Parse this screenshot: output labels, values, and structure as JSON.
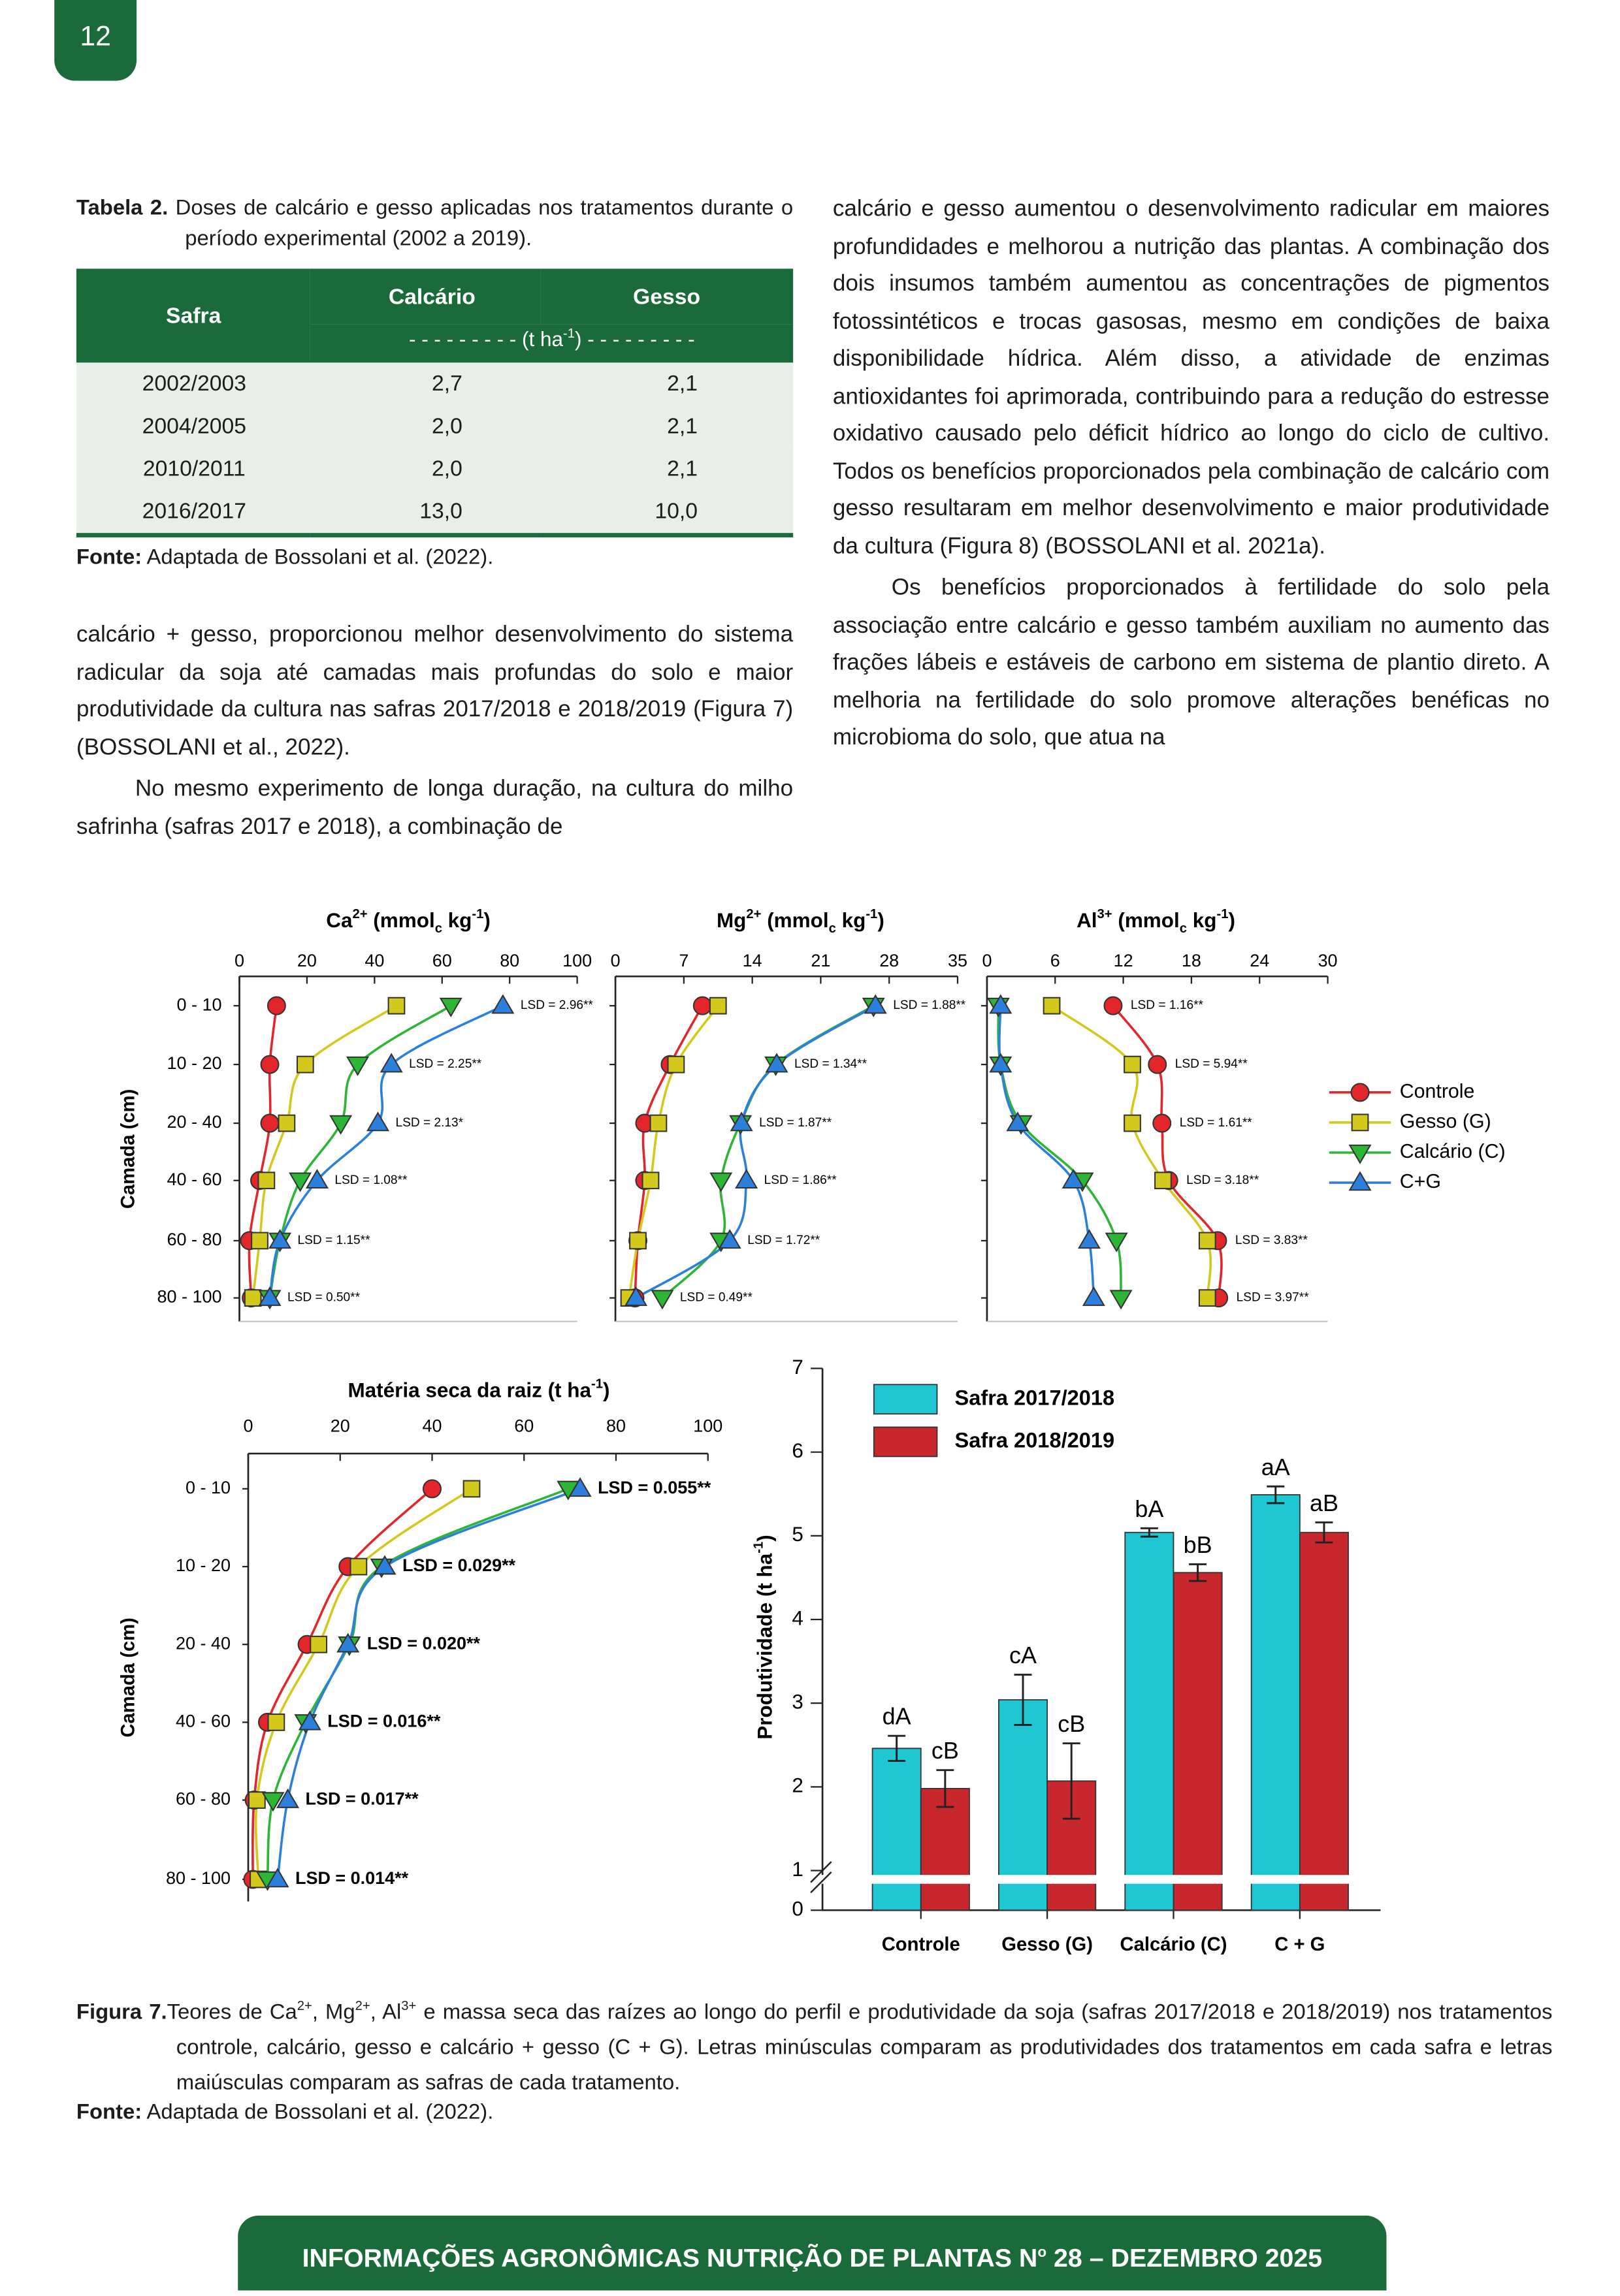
{
  "header": {
    "page_number": "12"
  },
  "table": {
    "caption_label": "Tabela 2.",
    "caption": "Doses de calcário e gesso aplicadas nos tratamentos durante o período experimental (2002 a 2019).",
    "columns": [
      "Safra",
      "Calcário",
      "Gesso"
    ],
    "units": [
      "- - - - - - - - - (t ha",
      "-1",
      ") - - - - - - - - -"
    ],
    "rows": [
      [
        "2002/2003",
        "2,7",
        "2,1"
      ],
      [
        "2004/2005",
        "2,0",
        "2,1"
      ],
      [
        "2010/2011",
        "2,0",
        "2,1"
      ],
      [
        "2016/2017",
        "13,0",
        "10,0"
      ]
    ],
    "source_label": "Fonte:",
    "source": "Adaptada de Bossolani et al. (2022)."
  },
  "body": {
    "left": [
      "calcário + gesso, proporcionou melhor desenvolvimento do sistema radicular da soja até camadas mais profundas do solo e maior produtividade da cultura nas safras 2017/2018 e 2018/2019 (Figura 7) (BOSSOLANI et al., 2022).",
      "No mesmo experimento de longa duração, na cultura do milho safrinha (safras 2017 e 2018), a combinação de"
    ],
    "right": [
      "calcário e gesso aumentou o desenvolvimento radicular em maiores profundidades e melhorou a nutrição das plantas. A combinação dos dois insumos também aumentou as concentrações de pigmentos fotossintéticos e trocas gasosas, mesmo em condições de baixa disponibilidade hídrica. Além disso, a atividade de enzimas antioxidantes foi aprimorada, contribuindo para a redução do estresse oxidativo causado pelo déficit hídrico ao longo do ciclo de cultivo. Todos os benefícios proporcionados pela combinação de calcário com gesso resultaram em melhor desenvolvimento e maior produtividade da cultura (Figura 8) (BOSSOLANI et al. 2021a).",
      "Os benefícios proporcionados à fertilidade do solo pela associação entre calcário e gesso também auxiliam no aumento das frações lábeis e estáveis de carbono em sistema de plantio direto. A melhoria na fertilidade do solo promove alterações benéficas no microbioma do solo, que atua na"
    ]
  },
  "figure": {
    "legend": [
      {
        "name": "Controle",
        "color": "#e3262b",
        "marker": "circle"
      },
      {
        "name": "Gesso (G)",
        "color": "#d2c91c",
        "marker": "square"
      },
      {
        "name": "Calcário (C)",
        "color": "#2db535",
        "marker": "triangle-down"
      },
      {
        "name": "C+G",
        "color": "#2d7fdc",
        "marker": "triangle-up"
      }
    ],
    "panels": [
      {
        "type": "line",
        "title_parts": [
          "Ca",
          "2+",
          " (mmol",
          "c",
          " kg",
          "-1",
          ")"
        ],
        "y_label": "Camada (cm)",
        "categories": [
          "0 - 10",
          "10 - 20",
          "20 - 40",
          "40 - 60",
          "60 - 80",
          "80 - 100"
        ],
        "xlim": [
          0,
          100
        ],
        "xticks": [
          0,
          20,
          40,
          60,
          80,
          100
        ],
        "series": [
          {
            "values": [
              11,
              9,
              9,
              6,
              3,
              3.5
            ]
          },
          {
            "values": [
              46.5,
              19.5,
              14,
              8,
              6,
              4
            ]
          },
          {
            "values": [
              62.6,
              35,
              30,
              18,
              12,
              9
            ]
          },
          {
            "values": [
              78,
              45,
              41,
              23,
              12,
              9
            ]
          }
        ],
        "lsd": [
          "LSD = 2.96**",
          "LSD = 2.25**",
          "LSD = 2.13*",
          "LSD = 1.08**",
          "LSD = 1.15**",
          "LSD = 0.50**"
        ]
      },
      {
        "type": "line",
        "title_parts": [
          "Mg",
          "2+",
          " (mmol",
          "c",
          " kg",
          "-1",
          ")"
        ],
        "xlim": [
          0,
          35
        ],
        "xticks": [
          0,
          7,
          14,
          21,
          28,
          35
        ],
        "series": [
          {
            "values": [
              8.9,
              5.6,
              3,
              3,
              2.3,
              2
            ]
          },
          {
            "values": [
              10.5,
              6.2,
              4.4,
              3.6,
              2.3,
              1.4
            ]
          },
          {
            "values": [
              26.4,
              16.4,
              12.8,
              10.8,
              10.8,
              4.8
            ]
          },
          {
            "values": [
              26.6,
              16.5,
              12.9,
              13.4,
              11.7,
              2.1
            ]
          }
        ],
        "lsd": [
          "LSD = 1.88**",
          "LSD = 1.34**",
          "LSD = 1.87**",
          "LSD = 1.86**",
          "LSD = 1.72**",
          "LSD = 0.49**"
        ]
      },
      {
        "type": "line",
        "title_parts": [
          "Al",
          "3+",
          " (mmol",
          "c",
          " kg",
          "-1",
          ")"
        ],
        "xlim": [
          0,
          30
        ],
        "xticks": [
          0,
          6,
          12,
          18,
          24,
          30
        ],
        "series": [
          {
            "values": [
              11.1,
              15,
              15.4,
              16,
              20.3,
              20.4
            ]
          },
          {
            "values": [
              5.7,
              12.8,
              12.8,
              15.5,
              19.4,
              19.4
            ]
          },
          {
            "values": [
              1,
              1.2,
              3,
              8.4,
              11.4,
              11.8
            ]
          },
          {
            "values": [
              1.2,
              1.2,
              2.7,
              7.6,
              9,
              9.4
            ]
          }
        ],
        "lsd": [
          "LSD = 1.16**",
          "LSD = 5.94**",
          "LSD = 1.61**",
          "LSD = 3.18**",
          "LSD = 3.83**",
          "LSD = 3.97**"
        ]
      },
      {
        "type": "line",
        "title_parts": [
          "Matéria seca da raiz (t ha",
          "-1",
          ")"
        ],
        "y_label": "Camada (cm)",
        "categories": [
          "0 - 10",
          "10 - 20",
          "20 - 40",
          "40 - 60",
          "60 - 80",
          "80 - 100"
        ],
        "xlim": [
          0,
          100
        ],
        "xticks": [
          0,
          20,
          40,
          60,
          80,
          100
        ],
        "series": [
          {
            "values": [
              40,
              21.7,
              12.8,
              4.2,
              1.3,
              1
            ]
          },
          {
            "values": [
              48.6,
              24,
              15.3,
              6.1,
              1.9,
              2.2
            ]
          },
          {
            "values": [
              69.6,
              29,
              22,
              12.5,
              5.4,
              4.2
            ]
          },
          {
            "values": [
              72.2,
              29.7,
              21.7,
              13.4,
              8.6,
              6.4
            ]
          }
        ],
        "lsd": [
          "LSD = 0.055**",
          "LSD = 0.029**",
          "LSD = 0.020**",
          "LSD = 0.016**",
          "LSD = 0.017**",
          "LSD = 0.014**"
        ]
      }
    ],
    "productivity": {
      "type": "bar",
      "y_label_parts": [
        "Produtividade (t ha",
        "-1",
        ")"
      ],
      "categories": [
        "Controle",
        "Gesso (G)",
        "Calcário (C)",
        "C + G"
      ],
      "ylim": [
        0,
        7
      ],
      "yticks": [
        0,
        1,
        2,
        3,
        4,
        5,
        6,
        7
      ],
      "axis_break": true,
      "series": [
        {
          "name": "Safra 2017/2018",
          "color": "#1fc7d3",
          "values": [
            2.46,
            3.04,
            5.04,
            5.49
          ],
          "errors": [
            0.15,
            0.3,
            0.05,
            0.1
          ],
          "letters": [
            "dA",
            "cA",
            "bA",
            "aA"
          ]
        },
        {
          "name": "Safra 2018/2019",
          "color": "#c8272e",
          "values": [
            1.98,
            2.07,
            4.56,
            5.04
          ],
          "errors": [
            0.22,
            0.45,
            0.1,
            0.12
          ],
          "letters": [
            "cB",
            "cB",
            "bB",
            "aB"
          ]
        }
      ]
    },
    "caption_label": "Figura 7.",
    "caption_parts": [
      "Teores de Ca",
      "2+",
      ", Mg",
      "2+",
      ", Al",
      "3+",
      " e massa seca das raízes ao longo do perfil e produtividade da soja (safras 2017/2018 e 2018/2019) nos tratamentos controle, calcário, gesso e calcário + gesso (C + G). Letras minúsculas comparam as produtividades dos tratamentos em cada safra e letras maiúsculas comparam as safras de cada tratamento."
    ],
    "source_label": "Fonte:",
    "source": "Adaptada de Bossolani et al. (2022)."
  },
  "footer": {
    "parts": [
      "INFORMAÇÕES AGRONÔMICAS NUTRIÇÃO DE PLANTAS N",
      "o",
      " 28 – DEZEMBRO 2025"
    ]
  }
}
